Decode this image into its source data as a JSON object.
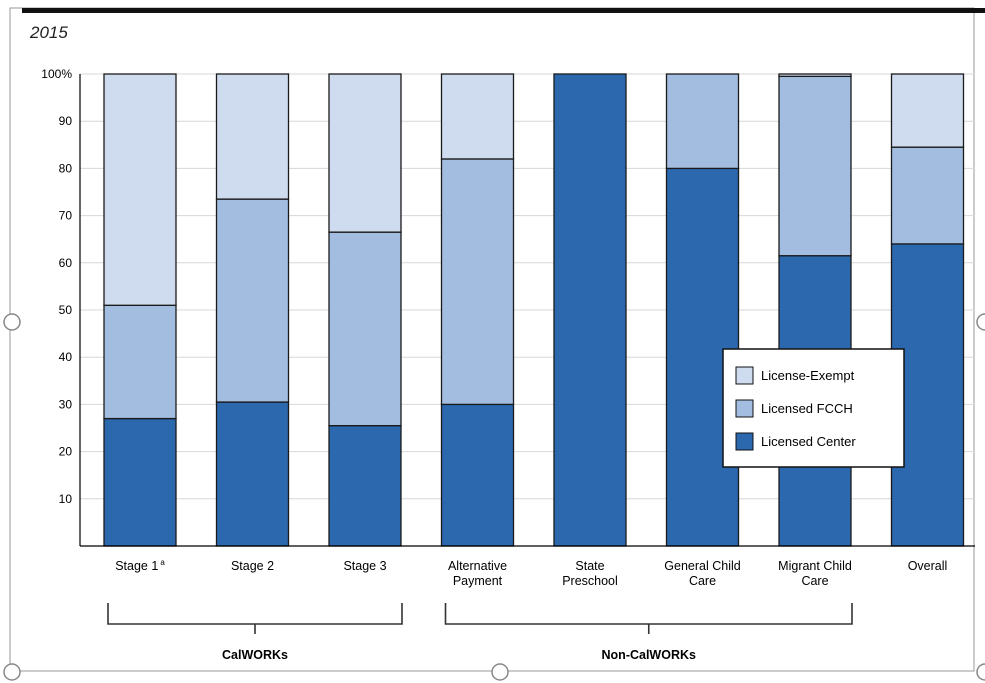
{
  "chart_data": {
    "type": "bar",
    "stacked": true,
    "percent_stacked": true,
    "title": "2015",
    "categories": [
      [
        "Stage 1",
        "a"
      ],
      [
        "Stage 2"
      ],
      [
        "Stage 3"
      ],
      [
        "Alternative",
        "Payment"
      ],
      [
        "State",
        "Preschool"
      ],
      [
        "General Child",
        "Care"
      ],
      [
        "Migrant Child",
        "Care"
      ],
      [
        "Overall"
      ]
    ],
    "groups": [
      {
        "label": "CalWORKs",
        "categories": [
          0,
          1,
          2
        ]
      },
      {
        "label": "Non-CalWORKs",
        "categories": [
          3,
          4,
          5,
          6
        ]
      }
    ],
    "series": [
      {
        "name": "Licensed Center",
        "color": "#2b68ae",
        "values": [
          27,
          30.5,
          25.5,
          30,
          100,
          80,
          61.5,
          64
        ]
      },
      {
        "name": "Licensed FCCH",
        "color": "#a3bde0",
        "values": [
          24,
          43,
          41,
          52,
          0,
          20,
          38,
          20.5
        ]
      },
      {
        "name": "License-Exempt",
        "color": "#cfdbef",
        "values": [
          49,
          26.5,
          33.5,
          18,
          0,
          0,
          0.5,
          15.5
        ]
      }
    ],
    "legend_order": [
      "License-Exempt",
      "Licensed FCCH",
      "Licensed Center"
    ],
    "legend_position": "right",
    "ylim": [
      0,
      100
    ],
    "yticks": [
      "10",
      "20",
      "30",
      "40",
      "50",
      "60",
      "70",
      "80",
      "90",
      "100%"
    ],
    "grid": "horizontal"
  }
}
